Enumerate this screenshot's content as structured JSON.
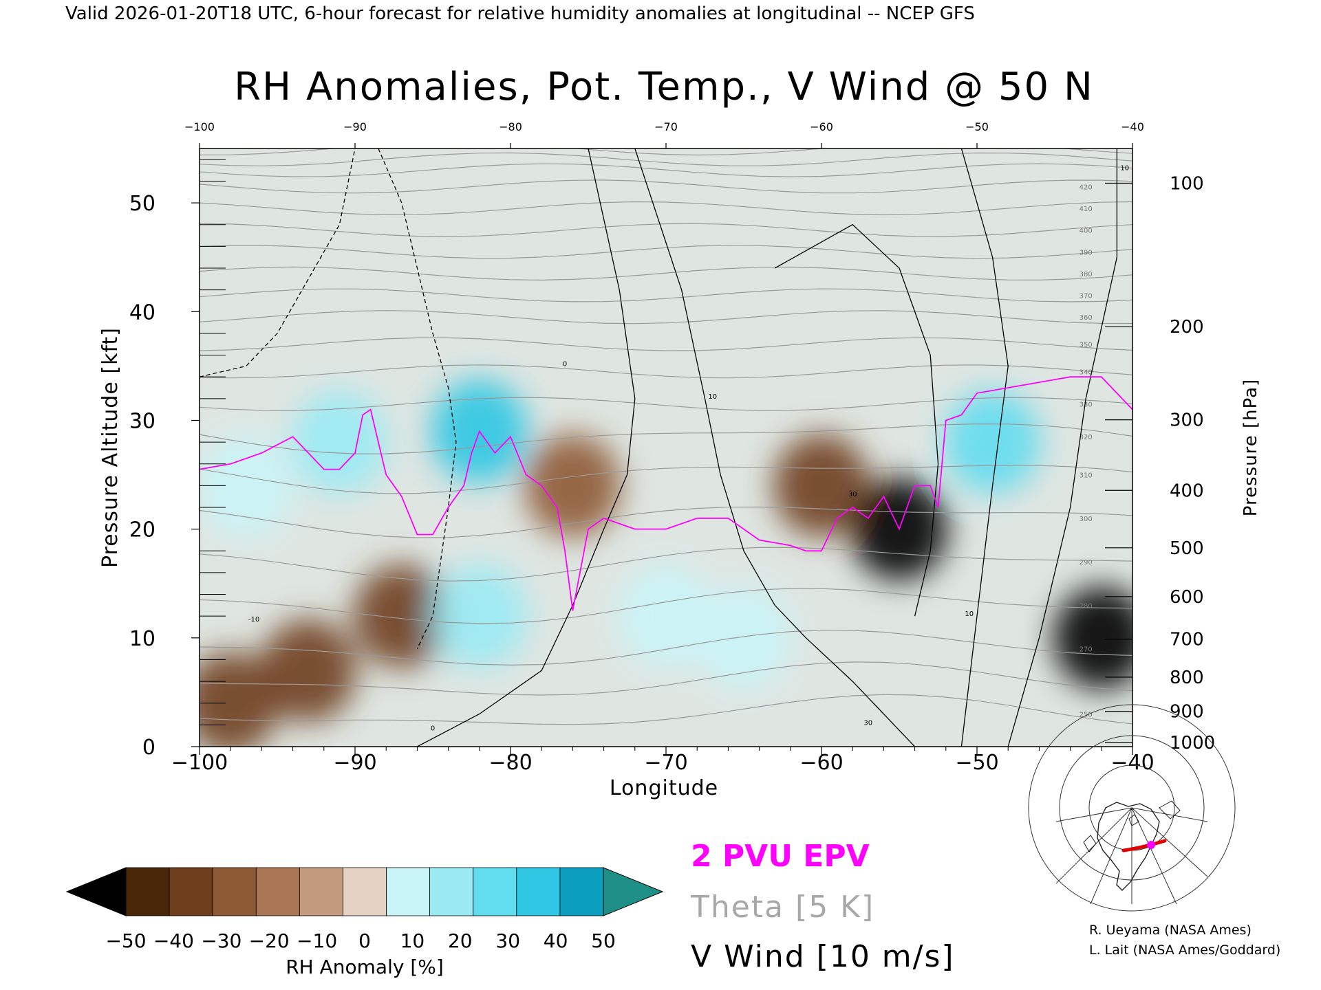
{
  "header": {
    "valid_line": "Valid 2026-01-20T18 UTC, 6-hour forecast for relative humidity anomalies at longitudinal -- NCEP GFS"
  },
  "chart_data": {
    "type": "heatmap",
    "title": "RH Anomalies, Pot. Temp., V Wind @ 50 N",
    "xlabel": "Longitude",
    "ylabel_left": "Pressure Altitude [kft]",
    "ylabel_right": "Pressure [hPa]",
    "xlim": [
      -100,
      -40
    ],
    "ylim": [
      0,
      55
    ],
    "x_ticks": [
      -100,
      -90,
      -80,
      -70,
      -60,
      -50,
      -40
    ],
    "x_tick_labels": [
      "−100",
      "−90",
      "−80",
      "−70",
      "−60",
      "−50",
      "−40"
    ],
    "x_top_tick_labels": [
      "−100",
      "−90",
      "−80",
      "−70",
      "−60",
      "−50",
      "−40"
    ],
    "y_ticks_kft": [
      0,
      10,
      20,
      30,
      40,
      50
    ],
    "y_tick_labels": [
      "0",
      "10",
      "20",
      "30",
      "40",
      "50"
    ],
    "pressure_ticks": [
      {
        "hpa": 100,
        "label": "100"
      },
      {
        "hpa": 200,
        "label": "200"
      },
      {
        "hpa": 300,
        "label": "300"
      },
      {
        "hpa": 400,
        "label": "400"
      },
      {
        "hpa": 500,
        "label": "500"
      },
      {
        "hpa": 600,
        "label": "600"
      },
      {
        "hpa": 700,
        "label": "700"
      },
      {
        "hpa": 800,
        "label": "800"
      },
      {
        "hpa": 900,
        "label": "900"
      },
      {
        "hpa": 1000,
        "label": "1000"
      }
    ],
    "colorbar": {
      "label": "RH Anomaly [%]",
      "levels": [
        -50,
        -40,
        -30,
        -20,
        -10,
        0,
        10,
        20,
        30,
        40,
        50
      ],
      "tick_labels": [
        "−50",
        "−40",
        "−30",
        "−20",
        "−10",
        "0",
        "10",
        "20",
        "30",
        "40",
        "50"
      ],
      "colors": [
        "#4a2608",
        "#6e3e1c",
        "#8e5a35",
        "#a97552",
        "#c49a7e",
        "#e6d2c5",
        "#c9f4f7",
        "#9aeaf4",
        "#62dcef",
        "#2ec6e3",
        "#0b9ebf"
      ],
      "under_color": "#000000",
      "over_color": "#1e8f86"
    },
    "rh_anomaly_cells": [
      {
        "lon": -98,
        "kft": 4,
        "rh": -38
      },
      {
        "lon": -93,
        "kft": 7,
        "rh": -40
      },
      {
        "lon": -97,
        "kft": 24,
        "rh": 18
      },
      {
        "lon": -91,
        "kft": 28,
        "rh": 20
      },
      {
        "lon": -87,
        "kft": 12,
        "rh": -32
      },
      {
        "lon": -82,
        "kft": 29,
        "rh": 48
      },
      {
        "lon": -82,
        "kft": 12,
        "rh": 24
      },
      {
        "lon": -76,
        "kft": 24,
        "rh": -22
      },
      {
        "lon": -70,
        "kft": 12,
        "rh": 18
      },
      {
        "lon": -60,
        "kft": 24,
        "rh": -40
      },
      {
        "lon": -55,
        "kft": 20,
        "rh": -55
      },
      {
        "lon": -49,
        "kft": 28,
        "rh": 30
      },
      {
        "lon": -42,
        "kft": 10,
        "rh": -52
      },
      {
        "lon": -65,
        "kft": 10,
        "rh": 16
      }
    ],
    "series": [
      {
        "name": "2 PVU EPV",
        "color": "#ff00ff",
        "lon": [
          -100,
          -98,
          -96,
          -94,
          -93,
          -92,
          -91,
          -90,
          -89.5,
          -89,
          -88,
          -87,
          -86,
          -85,
          -84,
          -83,
          -82.5,
          -82,
          -81,
          -80,
          -79,
          -78,
          -77,
          -76.5,
          -76,
          -75,
          -74,
          -72,
          -70,
          -68,
          -66,
          -64,
          -62,
          -61,
          -60,
          -59,
          -58,
          -57,
          -56,
          -55,
          -54,
          -53,
          -52.5,
          -52,
          -51,
          -50,
          -48,
          -46,
          -44,
          -42,
          -40
        ],
        "kft": [
          25.5,
          26,
          27,
          28.5,
          27,
          25.5,
          25.5,
          27,
          30.5,
          31,
          25,
          23,
          19.5,
          19.5,
          22,
          24,
          27,
          29,
          27,
          28.5,
          25,
          24,
          22,
          18,
          12.5,
          20,
          21,
          20,
          20,
          21,
          21,
          19,
          18.5,
          18,
          18,
          21,
          22,
          21,
          23,
          20,
          24,
          24,
          22,
          30,
          30.5,
          32.5,
          33,
          33.5,
          34,
          34,
          31
        ]
      },
      {
        "name": "V Wind",
        "color": "#000000",
        "contour_labels": [
          "0",
          "10",
          "30",
          "-10",
          "10",
          "30",
          "0",
          "10"
        ],
        "lines": [
          {
            "level": -10,
            "style": "dashed",
            "lon": [
              -88.5,
              -87,
              -86,
              -85,
              -84,
              -83.5,
              -84,
              -84.5,
              -85,
              -86
            ],
            "kft": [
              55,
              50,
              44,
              38,
              33,
              28,
              22,
              17,
              12,
              9
            ]
          },
          {
            "level": -10,
            "style": "dashed",
            "lon": [
              -100,
              -97,
              -95,
              -93,
              -91,
              -90
            ],
            "kft": [
              34,
              35,
              38,
              43,
              48,
              55
            ]
          },
          {
            "level": 0,
            "style": "solid",
            "lon": [
              -75,
              -73,
              -72,
              -72.5,
              -74,
              -76,
              -78,
              -82,
              -86
            ],
            "kft": [
              55,
              42,
              32,
              25,
              20,
              13,
              7,
              3,
              0
            ]
          },
          {
            "level": 10,
            "style": "solid",
            "lon": [
              -72,
              -69,
              -67.5,
              -66.5,
              -65,
              -63,
              -61,
              -58,
              -56,
              -54
            ],
            "kft": [
              55,
              42,
              32,
              25,
              18,
              13,
              10,
              6,
              3,
              0
            ]
          },
          {
            "level": 10,
            "style": "solid",
            "lon": [
              -63,
              -58,
              -55,
              -53,
              -52.5,
              -53,
              -54
            ],
            "kft": [
              44,
              48,
              44,
              36,
              26,
              18,
              12
            ]
          },
          {
            "level": 10,
            "style": "solid",
            "lon": [
              -51,
              -49,
              -48,
              -49,
              -50,
              -51
            ],
            "kft": [
              55,
              45,
              35,
              24,
              12,
              0
            ]
          },
          {
            "level": 10,
            "style": "solid",
            "lon": [
              -41,
              -41,
              -43,
              -44,
              -46,
              -48
            ],
            "kft": [
              55,
              45,
              32,
              22,
              10,
              0
            ]
          }
        ]
      },
      {
        "name": "Theta",
        "color": "#9a9a9a",
        "isentrope_labels": [
          "250",
          "270",
          "280",
          "290",
          "300",
          "310",
          "320",
          "330",
          "340",
          "350",
          "360",
          "370",
          "380",
          "390",
          "400",
          "410",
          "420"
        ],
        "levels_k": [
          250,
          260,
          270,
          280,
          290,
          300,
          310,
          320,
          330,
          340,
          350,
          360,
          370,
          380,
          390,
          400,
          410,
          420,
          430,
          440,
          450,
          460
        ],
        "mean_kft": [
          3,
          6,
          9,
          13,
          17,
          21,
          25,
          28.5,
          31.5,
          34.5,
          37,
          39.5,
          41.5,
          43.5,
          45.5,
          47.5,
          49.5,
          51.5,
          53,
          54,
          55,
          56
        ]
      }
    ],
    "legend": [
      {
        "label": "2 PVU EPV",
        "color": "#ff00ff"
      },
      {
        "label": "Theta [5 K]",
        "color": "#a8a8a8"
      },
      {
        "label": "V Wind [10 m/s]",
        "color": "#000000"
      }
    ]
  },
  "inset_map": {
    "region": "North America polar stereographic",
    "cross_section_color": "#e00000",
    "marker_color": "#ff00ff"
  },
  "credits": [
    "R. Ueyama (NASA Ames)",
    "L. Lait (NASA Ames/Goddard)"
  ]
}
